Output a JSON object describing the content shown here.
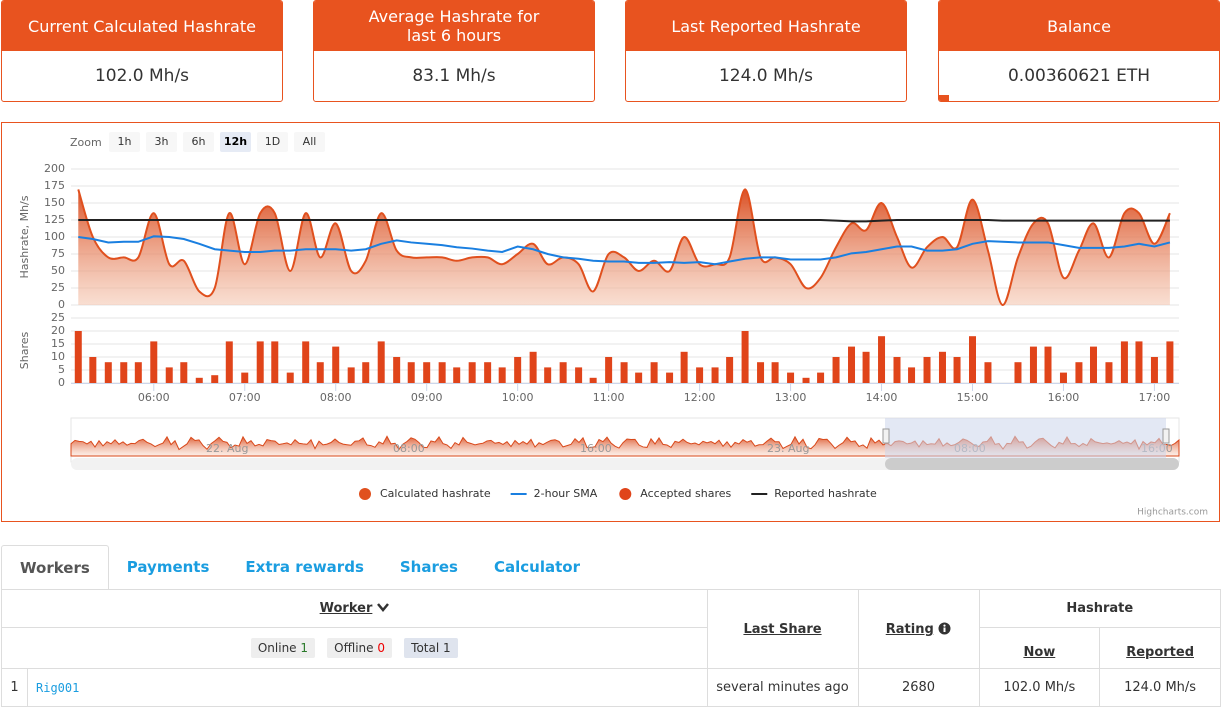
{
  "cards": [
    {
      "title": "Current Calculated Hashrate",
      "value": "102.0 Mh/s"
    },
    {
      "title": "Average Hashrate for last 6 hours",
      "value": "83.1 Mh/s"
    },
    {
      "title": "Last Reported Hashrate",
      "value": "124.0 Mh/s"
    },
    {
      "title": "Balance",
      "value": "0.00360621 ETH"
    }
  ],
  "chart_data": {
    "type": "line",
    "zoom": {
      "label": "Zoom",
      "buttons": [
        "1h",
        "3h",
        "6h",
        "12h",
        "1D",
        "All"
      ],
      "selected": "12h"
    },
    "y_title": "Hashrate, Mh/s",
    "y2_title": "Shares",
    "xlim": [
      5.09,
      17.27
    ],
    "xticks": [
      {
        "value": 6,
        "label": "06:00"
      },
      {
        "value": 7,
        "label": "07:00"
      },
      {
        "value": 8,
        "label": "08:00"
      },
      {
        "value": 9,
        "label": "09:00"
      },
      {
        "value": 10,
        "label": "10:00"
      },
      {
        "value": 11,
        "label": "11:00"
      },
      {
        "value": 12,
        "label": "12:00"
      },
      {
        "value": 13,
        "label": "13:00"
      },
      {
        "value": 14,
        "label": "14:00"
      },
      {
        "value": 15,
        "label": "15:00"
      },
      {
        "value": 16,
        "label": "16:00"
      },
      {
        "value": 17,
        "label": "17:00"
      }
    ],
    "ylim": [
      0,
      200
    ],
    "yticks": [
      0,
      25,
      50,
      75,
      100,
      125,
      150,
      175,
      200
    ],
    "y2lim": [
      0,
      25
    ],
    "y2ticks": [
      0,
      5,
      10,
      15,
      20,
      25
    ],
    "grid": true,
    "x": [
      5.17,
      5.33,
      5.5,
      5.67,
      5.83,
      6.0,
      6.17,
      6.33,
      6.5,
      6.67,
      6.83,
      7.0,
      7.17,
      7.33,
      7.5,
      7.67,
      7.83,
      8.0,
      8.17,
      8.33,
      8.5,
      8.67,
      8.83,
      9.0,
      9.17,
      9.33,
      9.5,
      9.67,
      9.83,
      10.0,
      10.17,
      10.33,
      10.5,
      10.67,
      10.83,
      11.0,
      11.17,
      11.33,
      11.5,
      11.67,
      11.83,
      12.0,
      12.17,
      12.33,
      12.5,
      12.67,
      12.83,
      13.0,
      13.17,
      13.33,
      13.5,
      13.67,
      13.83,
      14.0,
      14.17,
      14.33,
      14.5,
      14.67,
      14.83,
      15.0,
      15.17,
      15.33,
      15.5,
      15.67,
      15.83,
      16.0,
      16.17,
      16.33,
      16.5,
      16.67,
      16.83,
      17.0,
      17.17
    ],
    "series": [
      {
        "name": "Calculated hashrate",
        "type": "areaspline",
        "color": "#e0501e",
        "values": [
          170,
          100,
          70,
          70,
          70,
          135,
          60,
          65,
          20,
          25,
          135,
          60,
          135,
          135,
          50,
          135,
          70,
          120,
          50,
          65,
          135,
          80,
          70,
          70,
          70,
          65,
          70,
          70,
          60,
          75,
          90,
          60,
          70,
          60,
          20,
          75,
          70,
          50,
          65,
          50,
          100,
          60,
          60,
          70,
          170,
          70,
          70,
          60,
          25,
          40,
          85,
          120,
          110,
          150,
          100,
          55,
          85,
          100,
          85,
          155,
          80,
          0,
          70,
          120,
          120,
          40,
          80,
          120,
          70,
          135,
          135,
          90,
          135
        ]
      },
      {
        "name": "2-hour SMA",
        "type": "line",
        "color": "#1a7fe0",
        "values": [
          100,
          97,
          92,
          93,
          93,
          101,
          100,
          97,
          90,
          82,
          80,
          78,
          78,
          80,
          80,
          82,
          82,
          82,
          80,
          82,
          90,
          95,
          92,
          90,
          88,
          85,
          83,
          80,
          78,
          86,
          82,
          75,
          70,
          68,
          65,
          64,
          64,
          62,
          62,
          63,
          62,
          63,
          60,
          64,
          68,
          70,
          70,
          67,
          67,
          67,
          70,
          76,
          78,
          82,
          86,
          86,
          80,
          80,
          82,
          90,
          94,
          93,
          92,
          92,
          92,
          88,
          84,
          84,
          84,
          86,
          90,
          86,
          92
        ]
      },
      {
        "name": "Accepted shares",
        "type": "column",
        "axis": "y2",
        "color": "#e0441a",
        "values": [
          20,
          10,
          8,
          8,
          8,
          16,
          6,
          8,
          2,
          3,
          16,
          4,
          16,
          16,
          4,
          16,
          8,
          14,
          6,
          8,
          16,
          10,
          8,
          8,
          8,
          6,
          8,
          8,
          6,
          10,
          12,
          6,
          8,
          6,
          2,
          10,
          8,
          4,
          8,
          4,
          12,
          6,
          6,
          10,
          20,
          8,
          8,
          4,
          2,
          4,
          10,
          14,
          12,
          18,
          10,
          6,
          10,
          12,
          10,
          18,
          8,
          0,
          8,
          14,
          14,
          4,
          8,
          14,
          8,
          16,
          16,
          10,
          16
        ]
      },
      {
        "name": "Reported hashrate",
        "type": "line",
        "color": "#222222",
        "values": [
          125,
          125,
          125,
          125,
          125,
          125,
          125,
          125,
          125,
          125,
          125,
          125,
          125,
          125,
          125,
          125,
          125,
          125,
          125,
          125,
          125,
          125,
          125,
          125,
          125,
          125,
          125,
          125,
          125,
          125,
          125,
          125,
          125,
          125,
          125,
          125,
          125,
          125,
          125,
          125,
          125,
          125,
          125,
          125,
          125,
          125,
          125,
          125,
          125,
          125,
          124,
          123,
          123,
          124,
          125,
          125,
          125,
          125,
          125,
          125,
          125,
          124,
          124,
          124,
          124,
          124,
          124,
          124,
          124,
          124,
          124,
          124,
          124
        ]
      }
    ],
    "navigator": {
      "labels": [
        "22. Aug",
        "08:00",
        "16:00",
        "23. Aug",
        "08:00",
        "16:00"
      ]
    },
    "credits": "Highcharts.com"
  },
  "tabs": [
    "Workers",
    "Payments",
    "Extra rewards",
    "Shares",
    "Calculator"
  ],
  "table": {
    "headers": {
      "worker": "Worker",
      "last_share": "Last Share",
      "rating": "Rating",
      "hashrate": "Hashrate",
      "now": "Now",
      "reported": "Reported"
    },
    "filters": [
      {
        "label": "Online",
        "count": 1
      },
      {
        "label": "Offline",
        "count": 0
      },
      {
        "label": "Total",
        "count": 1
      }
    ],
    "rows": [
      [
        1,
        "Rig001",
        "several minutes ago",
        2680,
        "102.0 Mh/s",
        "124.0 Mh/s"
      ]
    ]
  }
}
